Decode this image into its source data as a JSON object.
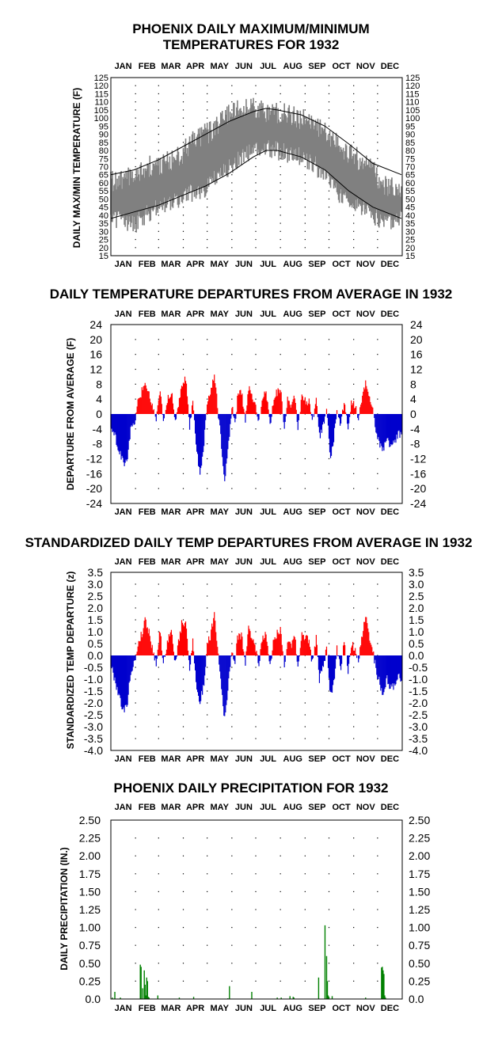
{
  "months": [
    "JAN",
    "FEB",
    "MAR",
    "APR",
    "MAY",
    "JUN",
    "JUL",
    "AUG",
    "SEP",
    "OCT",
    "NOV",
    "DEC"
  ],
  "colors": {
    "range": "#808080",
    "warm": "#ff0000",
    "cold": "#0000cd",
    "precip": "#008000",
    "normal": "#000000",
    "grid_dots": "#000000"
  },
  "chart_data": [
    {
      "type": "area",
      "title_lines": [
        "PHOENIX DAILY MAXIMUM/MINIMUM",
        "TEMPERATURES FOR 1932"
      ],
      "ylabel": "DAILY MAX/MIN TEMPERATURE (F)",
      "ylim": [
        15,
        125
      ],
      "yticks": [
        125,
        120,
        115,
        110,
        105,
        100,
        95,
        90,
        85,
        80,
        75,
        70,
        65,
        60,
        55,
        50,
        45,
        40,
        35,
        30,
        25,
        20,
        15
      ],
      "grid": "dotted",
      "series": [
        {
          "kind": "daily-max",
          "x": [
            1,
            15,
            30,
            45,
            60,
            75,
            90,
            105,
            120,
            135,
            150,
            165,
            180,
            195,
            210,
            225,
            240,
            255,
            270,
            285,
            300,
            315,
            330,
            345,
            366
          ],
          "values": [
            60,
            62,
            66,
            70,
            70,
            74,
            78,
            86,
            90,
            95,
            103,
            106,
            107,
            104,
            103,
            102,
            100,
            98,
            92,
            84,
            78,
            74,
            68,
            58,
            56
          ]
        },
        {
          "kind": "daily-min",
          "x": [
            1,
            15,
            30,
            45,
            60,
            75,
            90,
            105,
            120,
            135,
            150,
            165,
            180,
            195,
            210,
            225,
            240,
            255,
            270,
            285,
            300,
            315,
            330,
            345,
            366
          ],
          "values": [
            40,
            36,
            34,
            40,
            44,
            47,
            50,
            54,
            57,
            63,
            70,
            76,
            80,
            82,
            80,
            78,
            76,
            72,
            64,
            55,
            48,
            44,
            40,
            36,
            38
          ]
        },
        {
          "kind": "normal-max",
          "x": [
            1,
            30,
            60,
            90,
            120,
            150,
            180,
            196,
            210,
            240,
            270,
            300,
            330,
            366
          ],
          "values": [
            65,
            68,
            74,
            82,
            90,
            98,
            104,
            106,
            105,
            102,
            95,
            84,
            72,
            65
          ]
        },
        {
          "kind": "normal-min",
          "x": [
            1,
            30,
            60,
            90,
            120,
            150,
            180,
            196,
            210,
            240,
            270,
            300,
            330,
            366
          ],
          "values": [
            38,
            42,
            46,
            52,
            58,
            66,
            76,
            80,
            80,
            76,
            68,
            55,
            45,
            38
          ]
        }
      ]
    },
    {
      "type": "bar",
      "title_lines": [
        "DAILY TEMPERATURE DEPARTURES FROM AVERAGE IN 1932"
      ],
      "ylabel": "DEPARTURE FROM AVERAGE (F)",
      "ylim": [
        -24,
        24
      ],
      "yticks": [
        24,
        20,
        16,
        12,
        8,
        4,
        0,
        -4,
        -8,
        -12,
        -16,
        -20,
        -24
      ],
      "grid": "dotted",
      "anchors_x": [
        1,
        6,
        12,
        18,
        22,
        26,
        31,
        36,
        40,
        44,
        49,
        53,
        58,
        63,
        67,
        72,
        77,
        82,
        86,
        90,
        95,
        100,
        104,
        109,
        113,
        118,
        122,
        126,
        131,
        135,
        139,
        144,
        148,
        153,
        157,
        160,
        165,
        170,
        174,
        178,
        183,
        187,
        192,
        196,
        201,
        205,
        210,
        214,
        219,
        223,
        228,
        232,
        236,
        241,
        245,
        250,
        254,
        259,
        263,
        268,
        272,
        277,
        281,
        285,
        290,
        294,
        299,
        303,
        308,
        312,
        317,
        321,
        326,
        330,
        334,
        339,
        343,
        348,
        352,
        357,
        362,
        366
      ],
      "anchors_values": [
        -3,
        -6,
        -10,
        -14,
        -12,
        -4,
        -2,
        4,
        6,
        9,
        6,
        2,
        -2,
        7,
        -3,
        4,
        6,
        -2,
        3,
        8,
        10,
        -4,
        4,
        -10,
        -16,
        -8,
        3,
        5,
        11,
        2,
        -6,
        -18,
        -10,
        2,
        -3,
        4,
        6,
        -2,
        7,
        5,
        2,
        -2,
        5,
        6,
        -3,
        3,
        6,
        7,
        -3,
        4,
        2,
        5,
        -4,
        5,
        4,
        3,
        -2,
        4,
        -6,
        -3,
        2,
        -12,
        -7,
        2,
        -3,
        3,
        -4,
        3,
        2,
        -2,
        5,
        8,
        4,
        2,
        -4,
        -8,
        -10,
        -6,
        -9,
        -8,
        -5,
        -6
      ]
    },
    {
      "type": "bar",
      "title_lines": [
        "STANDARDIZED DAILY TEMP DEPARTURES FROM AVERAGE IN 1932"
      ],
      "ylabel": "STANDARDIZED TEMP DEPARTURE (z)",
      "ylim": [
        -4,
        3.5
      ],
      "yticks": [
        "3.5",
        "3.0",
        "2.5",
        "2.0",
        "1.5",
        "1.0",
        "0.5",
        "0.0",
        "-0.5",
        "-1.0",
        "-1.5",
        "-2.0",
        "-2.5",
        "-3.0",
        "-3.5",
        "-4.0"
      ],
      "grid": "dotted",
      "anchors_x": [
        1,
        6,
        12,
        18,
        22,
        26,
        31,
        36,
        40,
        44,
        49,
        53,
        58,
        63,
        67,
        72,
        77,
        82,
        86,
        90,
        95,
        100,
        104,
        109,
        113,
        118,
        122,
        126,
        131,
        135,
        139,
        144,
        148,
        153,
        157,
        160,
        165,
        170,
        174,
        178,
        183,
        187,
        192,
        196,
        201,
        205,
        210,
        214,
        219,
        223,
        228,
        232,
        236,
        241,
        245,
        250,
        254,
        259,
        263,
        268,
        272,
        277,
        281,
        285,
        290,
        294,
        299,
        303,
        308,
        312,
        317,
        321,
        326,
        330,
        334,
        339,
        343,
        348,
        352,
        357,
        362,
        366
      ],
      "anchors_values": [
        -0.4,
        -1.0,
        -1.8,
        -2.4,
        -1.9,
        -0.7,
        -0.3,
        0.6,
        0.9,
        1.5,
        1.0,
        0.3,
        -0.3,
        1.1,
        -0.4,
        0.6,
        1.0,
        -0.3,
        0.5,
        1.3,
        1.4,
        -0.6,
        0.7,
        -1.5,
        -2.0,
        -1.2,
        0.5,
        0.8,
        1.8,
        0.4,
        -1.0,
        -2.7,
        -1.5,
        0.3,
        -0.4,
        0.7,
        0.9,
        -0.3,
        1.1,
        0.8,
        0.3,
        -0.3,
        0.8,
        0.9,
        -0.4,
        0.5,
        1.0,
        1.1,
        -0.4,
        0.6,
        0.3,
        0.9,
        -0.6,
        0.9,
        0.8,
        0.6,
        -0.3,
        0.7,
        -1.0,
        -0.5,
        0.3,
        -1.7,
        -1.2,
        0.3,
        -0.5,
        0.6,
        -0.6,
        0.5,
        0.3,
        -0.3,
        0.9,
        1.6,
        0.8,
        0.3,
        -0.6,
        -1.2,
        -1.6,
        -1.0,
        -1.4,
        -1.3,
        -0.8,
        -1.0
      ]
    },
    {
      "type": "bar",
      "title_lines": [
        "PHOENIX DAILY PRECIPITATION FOR 1932"
      ],
      "ylabel": "DAILY PRECIPITATION (IN.)",
      "ylim": [
        0,
        2.5
      ],
      "yticks": [
        "2.50",
        "2.25",
        "2.00",
        "1.75",
        "1.50",
        "1.25",
        "1.00",
        "0.75",
        "0.50",
        "0.25",
        "0.0"
      ],
      "grid": "dotted",
      "x": [
        3,
        6,
        13,
        38,
        39,
        41,
        43,
        44,
        45,
        46,
        47,
        48,
        49,
        60,
        87,
        105,
        148,
        150,
        178,
        210,
        215,
        226,
        230,
        231,
        262,
        270,
        272,
        273,
        274,
        275,
        279,
        321,
        341,
        342,
        343,
        344,
        345,
        346
      ],
      "values": [
        0.02,
        0.1,
        0.02,
        0.48,
        0.45,
        0.15,
        0.4,
        0.2,
        0.05,
        0.3,
        0.25,
        0.03,
        0.02,
        0.05,
        0.02,
        0.03,
        0.01,
        0.18,
        0.1,
        0.02,
        0.02,
        0.04,
        0.03,
        0.02,
        0.3,
        1.03,
        0.6,
        0.25,
        0.05,
        0.03,
        0.04,
        0.02,
        0.44,
        0.45,
        0.4,
        0.35,
        0.05,
        0.02
      ]
    }
  ]
}
